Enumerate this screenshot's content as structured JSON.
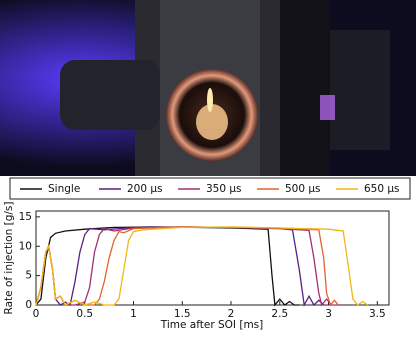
{
  "chart_data": {
    "type": "line",
    "ylabel": "Rate of injection [g/s]",
    "xlabel": "Time after SOI [ms]",
    "xlim": [
      0,
      3.62
    ],
    "ylim": [
      0,
      16
    ],
    "xticks": [
      0,
      0.5,
      1,
      1.5,
      2,
      2.5,
      3,
      3.5
    ],
    "yticks": [
      0,
      5,
      10,
      15
    ],
    "series": [
      {
        "name": "Single",
        "color": "#111111",
        "x": [
          0,
          0.05,
          0.1,
          0.15,
          0.2,
          0.3,
          0.5,
          0.8,
          1.2,
          1.6,
          2.0,
          2.38,
          2.42,
          2.45,
          2.5,
          2.55,
          2.6,
          2.65,
          2.7
        ],
        "values": [
          0,
          1,
          8,
          11.5,
          12.2,
          12.6,
          12.9,
          13.2,
          13.3,
          13.2,
          13.1,
          12.9,
          5,
          0,
          1,
          0,
          0.6,
          0,
          0
        ]
      },
      {
        "name": "200 µs",
        "color": "#5a1f86",
        "x": [
          0,
          0.05,
          0.1,
          0.13,
          0.17,
          0.2,
          0.25,
          0.3,
          0.35,
          0.4,
          0.45,
          0.5,
          0.55,
          0.7,
          1.0,
          1.5,
          2.0,
          2.5,
          2.63,
          2.7,
          2.75,
          2.8,
          2.85,
          2.9,
          2.95
        ],
        "values": [
          0,
          3,
          9,
          10,
          6,
          1,
          0,
          0.5,
          0,
          4,
          9,
          12,
          13,
          12.8,
          13.2,
          13.3,
          13.2,
          13,
          12.8,
          6,
          0,
          1.5,
          0,
          0.8,
          0
        ]
      },
      {
        "name": "350 µs",
        "color": "#a3306c",
        "x": [
          0,
          0.05,
          0.1,
          0.13,
          0.17,
          0.2,
          0.25,
          0.3,
          0.4,
          0.5,
          0.55,
          0.6,
          0.65,
          0.7,
          0.8,
          1.0,
          1.5,
          2.0,
          2.5,
          2.8,
          2.85,
          2.9,
          2.93,
          2.98,
          3.03,
          3.08
        ],
        "values": [
          0,
          3,
          9,
          10,
          6,
          1,
          1.5,
          0,
          0,
          0.5,
          3,
          9,
          12,
          13,
          12.6,
          13.1,
          13.3,
          13.2,
          13,
          12.7,
          8,
          2,
          0,
          1,
          0,
          0
        ]
      },
      {
        "name": "500 µs",
        "color": "#e2632e",
        "x": [
          0,
          0.05,
          0.1,
          0.13,
          0.17,
          0.2,
          0.25,
          0.3,
          0.4,
          0.5,
          0.6,
          0.65,
          0.7,
          0.75,
          0.8,
          0.85,
          0.9,
          1.0,
          1.5,
          2.0,
          2.5,
          2.9,
          2.95,
          2.98,
          3.02,
          3.06,
          3.1
        ],
        "values": [
          0,
          3,
          9,
          10,
          6,
          1,
          1.5,
          0,
          0.8,
          0,
          0,
          1,
          4,
          8,
          11,
          12.5,
          12.3,
          13,
          13.3,
          13.2,
          13.1,
          12.8,
          8,
          2,
          0,
          0.8,
          0
        ]
      },
      {
        "name": "650 µs",
        "color": "#f3b712",
        "x": [
          0,
          0.05,
          0.1,
          0.13,
          0.17,
          0.2,
          0.25,
          0.3,
          0.4,
          0.5,
          0.6,
          0.7,
          0.8,
          0.85,
          0.9,
          0.95,
          1.0,
          1.1,
          1.5,
          2.0,
          2.5,
          3.0,
          3.15,
          3.2,
          3.25,
          3.3,
          3.35,
          3.4
        ],
        "values": [
          0,
          3,
          9,
          10,
          6,
          1,
          1.5,
          0,
          0.8,
          0,
          0.5,
          0,
          0,
          1,
          6,
          11,
          12.5,
          12.8,
          13.2,
          13.3,
          13.1,
          12.9,
          12.6,
          7,
          1,
          0,
          0.6,
          0
        ]
      }
    ]
  }
}
